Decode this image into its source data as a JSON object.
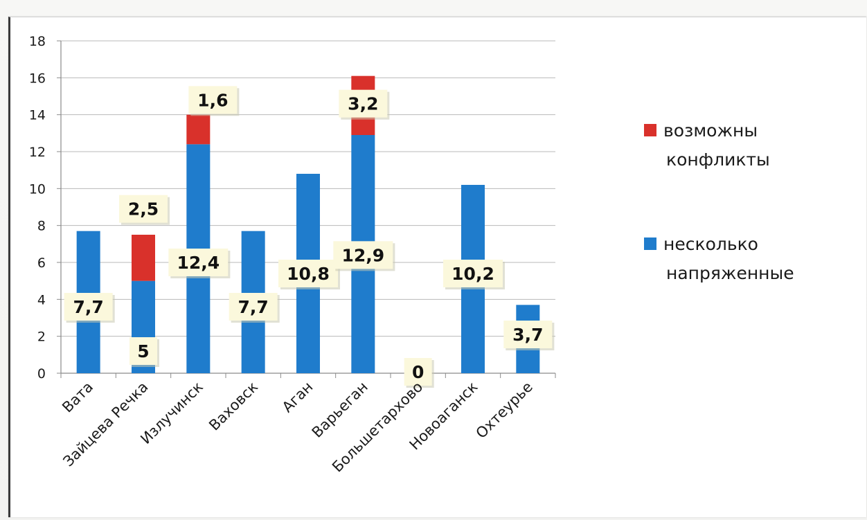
{
  "chart_data": {
    "type": "bar",
    "stacked": true,
    "categories": [
      "Вата",
      "Зайцева Речка",
      "Излучинск",
      "Ваховск",
      "Аган",
      "Варьеган",
      "Большетархово",
      "Новоаганск",
      "Охтеурье"
    ],
    "series": [
      {
        "name": "несколько напряженные",
        "color": "#1f7ccc",
        "values": [
          7.7,
          5,
          12.4,
          7.7,
          10.8,
          12.9,
          0,
          10.2,
          3.7
        ],
        "labels": [
          "7,7",
          "5",
          "12,4",
          "7,7",
          "10,8",
          "12,9",
          "0",
          "10,2",
          "3,7"
        ]
      },
      {
        "name": "возможны конфликты",
        "color": "#d9312b",
        "values": [
          0,
          2.5,
          1.6,
          0,
          0,
          3.2,
          0,
          0,
          0
        ],
        "labels": [
          "",
          "2,5",
          "1,6",
          "",
          "",
          "3,2",
          "",
          "",
          ""
        ]
      }
    ],
    "ylim": [
      0,
      18
    ],
    "yticks": [
      0,
      2,
      4,
      6,
      8,
      10,
      12,
      14,
      16,
      18
    ],
    "grid": true,
    "legend_position": "right",
    "legend": [
      {
        "lines": [
          "возможны",
          "конфликты"
        ],
        "color": "#d9312b"
      },
      {
        "lines": [
          "несколько",
          "напряженные"
        ],
        "color": "#1f7ccc"
      }
    ]
  }
}
